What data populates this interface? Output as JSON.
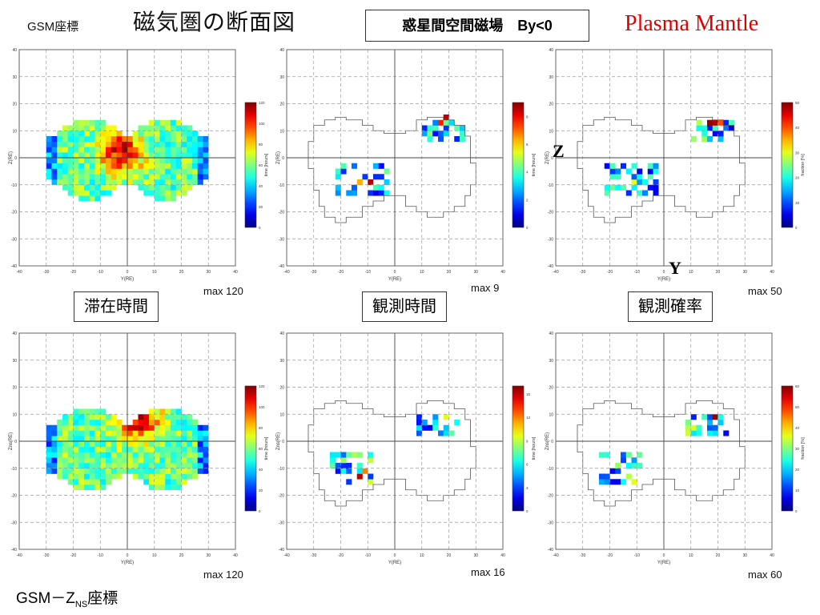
{
  "header": {
    "coord_label": "GSM座標",
    "title": "磁気圏の断面図",
    "condition": "惑星間空間磁場　By<0",
    "region": "Plasma Mantle"
  },
  "labels": {
    "residence_time": "滞在時間",
    "observation_time": "観測時間",
    "observation_prob": "観測確率",
    "axis_Z": "Z",
    "axis_Y": "Y",
    "footer_prefix": "GSM－Z",
    "footer_sub": "NS",
    "footer_suffix": "座標"
  },
  "colors": {
    "text_red": "#e00000",
    "grid": "#9a9a9a",
    "frame": "#666666"
  },
  "chart_data": [
    {
      "type": "heatmap",
      "panel": "top-left",
      "xlabel": "Y(RE)",
      "ylabel": "Z(RE)",
      "xlim": [
        -40,
        40
      ],
      "ylim": [
        -40,
        40
      ],
      "colorbar": {
        "label": "time [hours]",
        "max": 120,
        "ticks": [
          0,
          20,
          40,
          60,
          80,
          100,
          120
        ]
      },
      "max_text": "max 120"
    },
    {
      "type": "heatmap",
      "panel": "top-middle",
      "xlabel": "Y(RE)",
      "ylabel": "Z(RE)",
      "xlim": [
        -40,
        40
      ],
      "ylim": [
        -40,
        40
      ],
      "colorbar": {
        "label": "time [hours]",
        "max": 9,
        "ticks": [
          0,
          2,
          4,
          6,
          8
        ]
      },
      "max_text": "max 9"
    },
    {
      "type": "heatmap",
      "panel": "top-right",
      "xlabel": "Y(RE)",
      "ylabel": "Z(RE)",
      "xlim": [
        -40,
        40
      ],
      "ylim": [
        -40,
        40
      ],
      "colorbar": {
        "label": "fraction [%]",
        "max": 50,
        "ticks": [
          0,
          10,
          20,
          30,
          40,
          50
        ]
      },
      "max_text": "max 50"
    },
    {
      "type": "heatmap",
      "panel": "bottom-left",
      "xlabel": "Y(RE)",
      "ylabel": "Zns(RE)",
      "xlim": [
        -40,
        40
      ],
      "ylim": [
        -40,
        40
      ],
      "colorbar": {
        "label": "time [hours]",
        "max": 120,
        "ticks": [
          0,
          20,
          40,
          60,
          80,
          100,
          120
        ]
      },
      "max_text": "max 120"
    },
    {
      "type": "heatmap",
      "panel": "bottom-middle",
      "xlabel": "Y(RE)",
      "ylabel": "Zns(RE)",
      "xlim": [
        -40,
        40
      ],
      "ylim": [
        -40,
        40
      ],
      "colorbar": {
        "label": "time [hours]",
        "max": 16,
        "ticks": [
          0,
          3,
          6,
          9,
          12,
          15
        ]
      },
      "max_text": "max 16"
    },
    {
      "type": "heatmap",
      "panel": "bottom-right",
      "xlabel": "Y(RE)",
      "ylabel": "Zns(RE)",
      "xlim": [
        -40,
        40
      ],
      "ylim": [
        -40,
        40
      ],
      "colorbar": {
        "label": "fraction [%]",
        "max": 60,
        "ticks": [
          0,
          10,
          20,
          30,
          40,
          50,
          60
        ]
      },
      "max_text": "max 60"
    }
  ]
}
